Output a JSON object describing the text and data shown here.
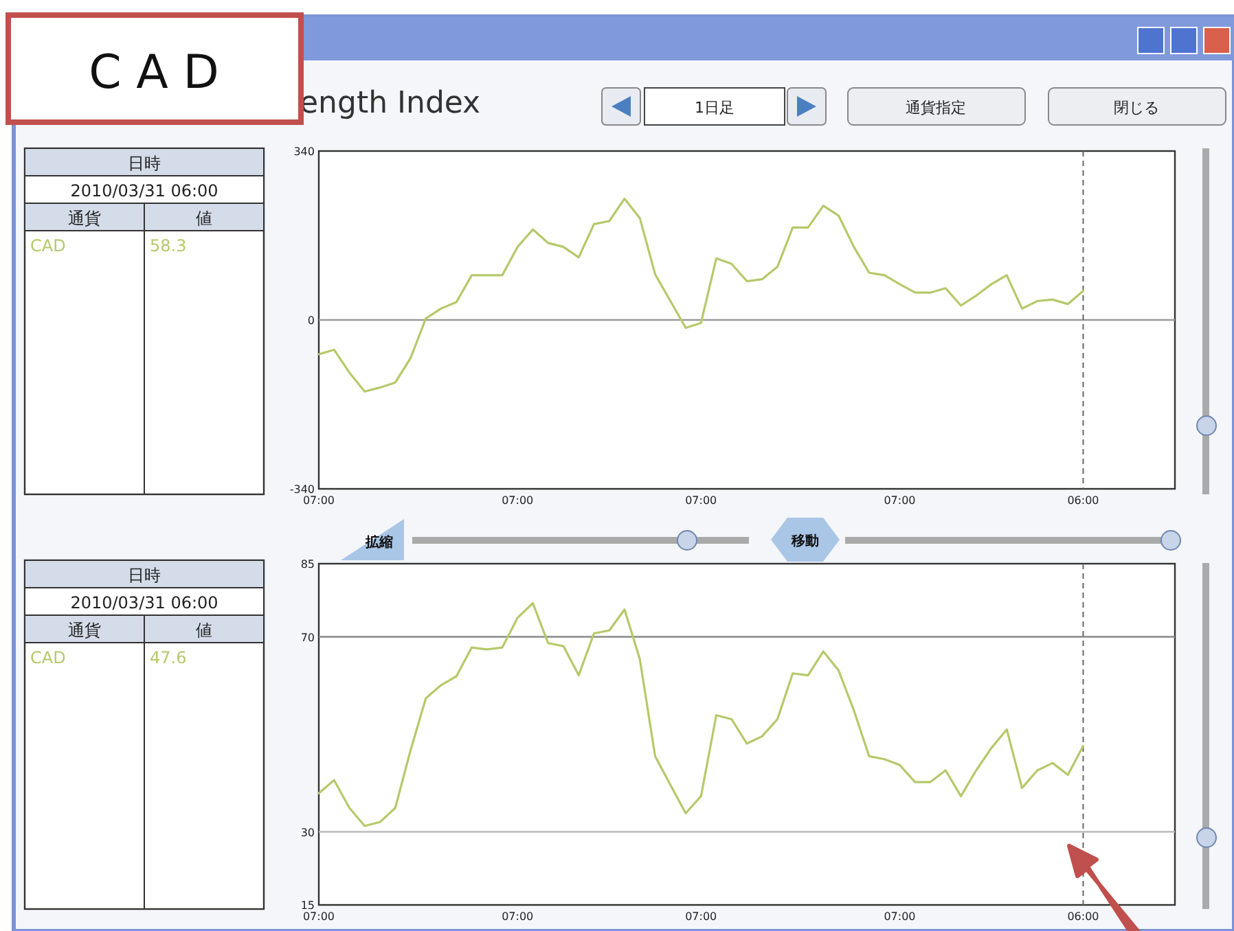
{
  "chart_data": [
    {
      "type": "line",
      "title": "ength Index",
      "ylim": [
        -340,
        340
      ],
      "yticks": [
        340,
        0,
        -340
      ],
      "categories": [
        "07:00",
        null,
        null,
        null,
        null,
        null,
        null,
        null,
        null,
        null,
        null,
        null,
        null,
        "07:00",
        null,
        null,
        null,
        null,
        null,
        null,
        null,
        null,
        null,
        null,
        null,
        "07:00",
        null,
        null,
        null,
        null,
        null,
        null,
        null,
        null,
        null,
        null,
        null,
        null,
        "07:00",
        null,
        null,
        null,
        null,
        null,
        null,
        null,
        null,
        null,
        null,
        null,
        "06:00"
      ],
      "legend": "left",
      "series": [
        {
          "name": "CAD",
          "color": "#b5c96a",
          "values": [
            -69,
            -60,
            -106,
            -144,
            -136,
            -126,
            -77,
            3,
            23,
            36,
            90,
            90,
            90,
            147,
            182,
            155,
            147,
            126,
            193,
            199,
            244,
            205,
            92,
            38,
            -16,
            -6,
            124,
            113,
            78,
            82,
            107,
            186,
            186,
            230,
            210,
            147,
            95,
            90,
            72,
            55,
            55,
            64,
            29,
            49,
            72,
            90,
            23,
            38,
            41,
            32,
            58.3
          ]
        }
      ],
      "ref_lines": [
        {
          "axis": "y",
          "value": 0,
          "color": "#999999"
        },
        {
          "axis": "x",
          "value": "06:00",
          "color": "#666666",
          "line_style": "dashed"
        }
      ],
      "annotations": [
        "日時",
        "2010/03/31 06:00",
        "通貨",
        "値",
        "58.3",
        "C A D",
        "1日足",
        "通貨指定",
        "閉じる",
        "拡縮",
        "移動"
      ]
    },
    {
      "type": "line",
      "ylim": [
        15,
        85
      ],
      "yticks": [
        85,
        70,
        30,
        15
      ],
      "categories": [
        "07:00",
        null,
        null,
        null,
        null,
        null,
        null,
        null,
        null,
        null,
        null,
        null,
        null,
        "07:00",
        null,
        null,
        null,
        null,
        null,
        null,
        null,
        null,
        null,
        null,
        null,
        "07:00",
        null,
        null,
        null,
        null,
        null,
        null,
        null,
        null,
        null,
        null,
        null,
        null,
        "07:00",
        null,
        null,
        null,
        null,
        null,
        null,
        null,
        null,
        null,
        null,
        null,
        "06:00"
      ],
      "legend": "left",
      "series": [
        {
          "name": "CAD",
          "color": "#b5c96a",
          "values": [
            37.9,
            40.6,
            34.9,
            31.2,
            32.0,
            34.9,
            46.7,
            57.4,
            60.1,
            61.9,
            67.8,
            67.4,
            67.8,
            73.9,
            76.9,
            68.7,
            68.1,
            62.1,
            70.7,
            71.3,
            75.6,
            65.4,
            45.5,
            39.6,
            33.8,
            37.3,
            53.9,
            53.1,
            48.1,
            49.6,
            53.1,
            62.5,
            62.1,
            67.0,
            63.1,
            54.9,
            45.5,
            44.9,
            43.7,
            40.2,
            40.2,
            42.6,
            37.3,
            42.6,
            47.2,
            51.0,
            39.0,
            42.6,
            44.1,
            41.7,
            47.6
          ]
        }
      ],
      "ref_lines": [
        {
          "axis": "y",
          "value": 70,
          "color": "#888888"
        },
        {
          "axis": "y",
          "value": 30,
          "color": "#bbbbbb"
        },
        {
          "axis": "x",
          "value": "06:00",
          "color": "#666666",
          "line_style": "dashed"
        }
      ],
      "annotations": [
        "日時",
        "2010/03/31 06:00",
        "通貨",
        "値",
        "47.6"
      ]
    }
  ]
}
